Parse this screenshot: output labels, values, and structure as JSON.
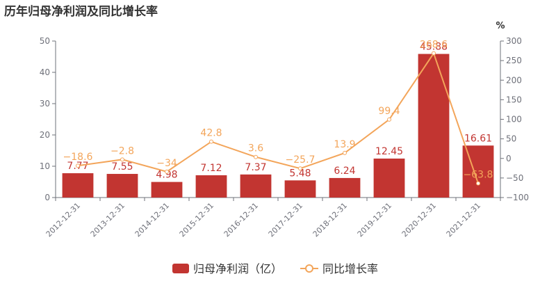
{
  "chart_data": {
    "type": "bar",
    "title": "历年归母净利润及同比增长率",
    "categories": [
      "2012-12-31",
      "2013-12-31",
      "2014-12-31",
      "2015-12-31",
      "2016-12-31",
      "2017-12-31",
      "2018-12-31",
      "2019-12-31",
      "2020-12-31",
      "2021-12-31"
    ],
    "series": [
      {
        "name": "归母净利润（亿）",
        "type": "bar",
        "axis": "left",
        "color": "#c23531",
        "values": [
          7.77,
          7.55,
          4.98,
          7.12,
          7.37,
          5.48,
          6.24,
          12.45,
          45.88,
          16.61
        ],
        "labels": [
          "7.77",
          "7.55",
          "4.98",
          "7.12",
          "7.37",
          "5.48",
          "6.24",
          "12.45",
          "45.88",
          "16.61"
        ]
      },
      {
        "name": "同比增长率",
        "type": "line",
        "axis": "right",
        "color": "#f3a55a",
        "values": [
          -18.6,
          -2.8,
          -34,
          42.8,
          3.6,
          -25.7,
          13.9,
          99.4,
          268.6,
          -63.8
        ],
        "labels": [
          "−18.6",
          "−2.8",
          "−34",
          "42.8",
          "3.6",
          "−25.7",
          "13.9",
          "99.4",
          "268.6",
          "−63.8"
        ]
      }
    ],
    "y_left": {
      "min": 0,
      "max": 50,
      "ticks": [
        "0",
        "10",
        "20",
        "30",
        "40",
        "50"
      ]
    },
    "y_right": {
      "min": -100,
      "max": 300,
      "ticks": [
        "−100",
        "−50",
        "0",
        "50",
        "100",
        "150",
        "200",
        "250",
        "300"
      ],
      "unit": "%"
    },
    "grid": false,
    "legend_position": "bottom-center"
  }
}
